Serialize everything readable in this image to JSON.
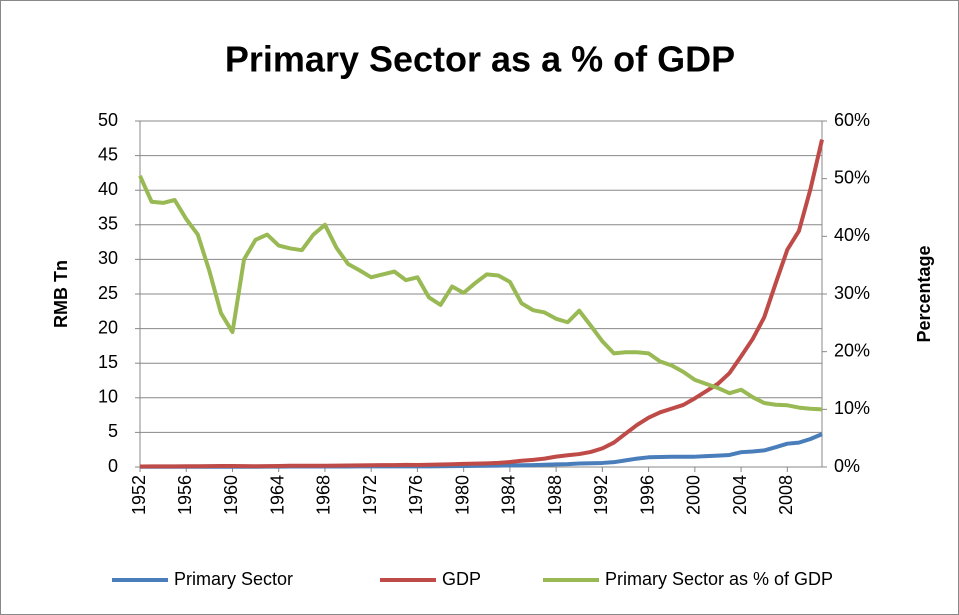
{
  "chart_data": {
    "type": "line",
    "title": "Primary Sector as a % of GDP",
    "y_label": "RMB Tn",
    "y2_label": "Percentage",
    "x": [
      1952,
      1953,
      1954,
      1955,
      1956,
      1957,
      1958,
      1959,
      1960,
      1961,
      1962,
      1963,
      1964,
      1965,
      1966,
      1967,
      1968,
      1969,
      1970,
      1971,
      1972,
      1973,
      1974,
      1975,
      1976,
      1977,
      1978,
      1979,
      1980,
      1981,
      1982,
      1983,
      1984,
      1985,
      1986,
      1987,
      1988,
      1989,
      1990,
      1991,
      1992,
      1993,
      1994,
      1995,
      1996,
      1997,
      1998,
      1999,
      2000,
      2001,
      2002,
      2003,
      2004,
      2005,
      2006,
      2007,
      2008,
      2009,
      2010,
      2011
    ],
    "xlim": [
      1952,
      2011
    ],
    "xticks": [
      1952,
      1956,
      1960,
      1964,
      1968,
      1972,
      1976,
      1980,
      1984,
      1988,
      1992,
      1996,
      2000,
      2004,
      2008
    ],
    "ylim": [
      0,
      50
    ],
    "yticks": [
      0,
      5,
      10,
      15,
      20,
      25,
      30,
      35,
      40,
      45,
      50
    ],
    "y2lim": [
      0,
      60
    ],
    "y2ticks": [
      {
        "value": 0,
        "label": "0%"
      },
      {
        "value": 10,
        "label": "10%"
      },
      {
        "value": 20,
        "label": "20%"
      },
      {
        "value": 30,
        "label": "30%"
      },
      {
        "value": 40,
        "label": "40%"
      },
      {
        "value": 50,
        "label": "50%"
      },
      {
        "value": 60,
        "label": "60%"
      }
    ],
    "grid": true,
    "legend": "bottom",
    "series": [
      {
        "name": "Primary Sector",
        "color": "#4a7ebb",
        "values": [
          0.034,
          0.038,
          0.04,
          0.042,
          0.044,
          0.043,
          0.045,
          0.038,
          0.034,
          0.044,
          0.045,
          0.05,
          0.056,
          0.065,
          0.07,
          0.071,
          0.073,
          0.074,
          0.079,
          0.083,
          0.083,
          0.091,
          0.095,
          0.097,
          0.097,
          0.094,
          0.103,
          0.127,
          0.136,
          0.155,
          0.178,
          0.196,
          0.23,
          0.256,
          0.279,
          0.32,
          0.383,
          0.423,
          0.506,
          0.534,
          0.587,
          0.696,
          0.957,
          1.21,
          1.4,
          1.44,
          1.48,
          1.48,
          1.49,
          1.58,
          1.65,
          1.74,
          2.14,
          2.24,
          2.4,
          2.86,
          3.37,
          3.52,
          4.05,
          4.75
        ]
      },
      {
        "name": "GDP",
        "color": "#be4b48",
        "values": [
          0.068,
          0.082,
          0.086,
          0.091,
          0.103,
          0.107,
          0.131,
          0.144,
          0.146,
          0.122,
          0.115,
          0.123,
          0.145,
          0.172,
          0.187,
          0.178,
          0.172,
          0.194,
          0.225,
          0.243,
          0.252,
          0.272,
          0.279,
          0.3,
          0.294,
          0.32,
          0.365,
          0.406,
          0.455,
          0.489,
          0.532,
          0.596,
          0.721,
          0.902,
          1.03,
          1.21,
          1.5,
          1.7,
          1.87,
          2.18,
          2.69,
          3.53,
          4.82,
          6.08,
          7.12,
          7.9,
          8.44,
          8.97,
          9.92,
          10.97,
          12.03,
          13.58,
          15.99,
          18.49,
          21.63,
          26.58,
          31.4,
          34.09,
          40.15,
          47.31
        ]
      },
      {
        "name": "Primary Sector as % of GDP",
        "color": "#98b954",
        "axis": "y2",
        "values": [
          50.5,
          46,
          45.8,
          46.3,
          43,
          40.3,
          34,
          26.7,
          23.4,
          36,
          39.4,
          40.3,
          38.4,
          37.9,
          37.6,
          40.3,
          42,
          38,
          35.2,
          34.1,
          32.9,
          33.4,
          33.9,
          32.4,
          32.9,
          29.4,
          28.1,
          31.3,
          30.2,
          31.9,
          33.4,
          33.2,
          32.1,
          28.4,
          27.2,
          26.8,
          25.7,
          25.1,
          27.1,
          24.5,
          21.8,
          19.7,
          19.9,
          19.9,
          19.7,
          18.3,
          17.6,
          16.5,
          15.1,
          14.4,
          13.7,
          12.8,
          13.4,
          12.1,
          11.1,
          10.8,
          10.7,
          10.3,
          10.1,
          10.0
        ]
      }
    ]
  }
}
